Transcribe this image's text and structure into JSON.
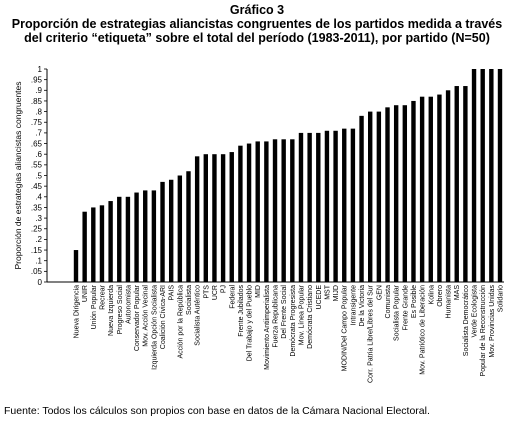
{
  "title": "Gráfico 3",
  "subtitle_line1": "Proporción de estrategias aliancistas congruentes de los partidos medida a través",
  "subtitle_line2": "del criterio “etiqueta” sobre el total del período (1983-2011), por partido (N=50)",
  "source": "Fuente: Todos los cálculos son propios con base en datos de la Cámara Nacional Electoral.",
  "chart_data": {
    "type": "bar",
    "ylabel": "Proporción de estrategias aliancistas congruentes",
    "xlabel": "",
    "ylim": [
      0,
      1
    ],
    "yticks": [
      {
        "v": 0,
        "label": "0"
      },
      {
        "v": 0.05,
        "label": ".05"
      },
      {
        "v": 0.1,
        "label": ".1"
      },
      {
        "v": 0.15,
        "label": ".15"
      },
      {
        "v": 0.2,
        "label": ".2"
      },
      {
        "v": 0.25,
        "label": ".25"
      },
      {
        "v": 0.3,
        "label": ".3"
      },
      {
        "v": 0.35,
        "label": ".35"
      },
      {
        "v": 0.4,
        "label": ".4"
      },
      {
        "v": 0.45,
        "label": ".45"
      },
      {
        "v": 0.5,
        "label": ".5"
      },
      {
        "v": 0.55,
        "label": ".55"
      },
      {
        "v": 0.6,
        "label": ".6"
      },
      {
        "v": 0.65,
        "label": ".65"
      },
      {
        "v": 0.7,
        "label": ".7"
      },
      {
        "v": 0.75,
        "label": ".75"
      },
      {
        "v": 0.8,
        "label": ".8"
      },
      {
        "v": 0.85,
        "label": ".85"
      },
      {
        "v": 0.9,
        "label": ".9"
      },
      {
        "v": 0.95,
        "label": ".95"
      },
      {
        "v": 1,
        "label": "1"
      }
    ],
    "categories": [
      "Nueva Dirigencia",
      "UNIR",
      "Unión Popular",
      "Recrear",
      "Nueva Izquierda",
      "Progreso Social",
      "Autonomista",
      "Conservador Popular",
      "Mov. Acción Vecinal",
      "Izquierda Opción Socialista",
      "Coalición Cívica-ARI",
      "PAIS",
      "Acción por la República",
      "Socialista",
      "Socialista Auténtico",
      "PTS",
      "UCR",
      "PJ",
      "Federal",
      "Frente Jubilados",
      "Del Trabajo y del Pueblo",
      "MID",
      "Movimiento Antiimperialista",
      "Fuerza Republicana",
      "Del Frente Social",
      "Demócrata Progresista",
      "Mov. Línea Popular",
      "Demócrata Cristiano",
      "UCEDE",
      "MST",
      "MIJD",
      "MODIN/Del Campo Popular",
      "Intransigente",
      "De la Victoria",
      "Corr. Patria Libre/Libres del Sur",
      "GEN",
      "Comunista",
      "Socialista Popular",
      "Frente Grande",
      "Es Posible",
      "Mov. Patriótico de Liberación",
      "Kolina",
      "Obrero",
      "Humanista",
      "MAS",
      "Socialista Democrático",
      "Verde Ecologista",
      "Popular de la Reconstrucción",
      "Mov. Provincias Unidas",
      "Solidario"
    ],
    "values": [
      0.15,
      0.33,
      0.35,
      0.36,
      0.38,
      0.4,
      0.4,
      0.42,
      0.43,
      0.43,
      0.47,
      0.48,
      0.5,
      0.52,
      0.59,
      0.6,
      0.6,
      0.6,
      0.61,
      0.64,
      0.65,
      0.66,
      0.66,
      0.67,
      0.67,
      0.67,
      0.7,
      0.7,
      0.7,
      0.71,
      0.71,
      0.72,
      0.72,
      0.78,
      0.8,
      0.8,
      0.82,
      0.83,
      0.83,
      0.85,
      0.87,
      0.87,
      0.88,
      0.9,
      0.92,
      0.92,
      1.0,
      1.0,
      1.0,
      1.0
    ],
    "bar_color": "#000000",
    "grid": false
  }
}
